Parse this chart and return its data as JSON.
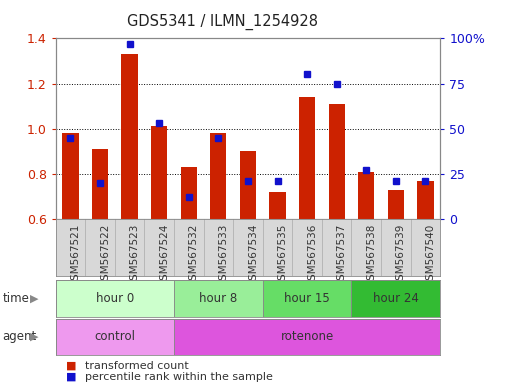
{
  "title": "GDS5341 / ILMN_1254928",
  "samples": [
    "GSM567521",
    "GSM567522",
    "GSM567523",
    "GSM567524",
    "GSM567532",
    "GSM567533",
    "GSM567534",
    "GSM567535",
    "GSM567536",
    "GSM567537",
    "GSM567538",
    "GSM567539",
    "GSM567540"
  ],
  "transformed_count": [
    0.98,
    0.91,
    1.33,
    1.01,
    0.83,
    0.98,
    0.9,
    0.72,
    1.14,
    1.11,
    0.81,
    0.73,
    0.77
  ],
  "percentile_rank_pct": [
    45,
    20,
    97,
    53,
    12,
    45,
    21,
    21,
    80,
    75,
    27,
    21,
    21
  ],
  "ylim_left": [
    0.6,
    1.4
  ],
  "ylim_right": [
    0,
    100
  ],
  "bar_color": "#cc2200",
  "dot_color": "#1111cc",
  "bg_color": "#ffffff",
  "tick_label_color_left": "#cc2200",
  "tick_label_color_right": "#1111cc",
  "yticks_left": [
    0.6,
    0.8,
    1.0,
    1.2,
    1.4
  ],
  "yticks_right": [
    0,
    25,
    50,
    75,
    100
  ],
  "time_groups": [
    {
      "label": "hour 0",
      "start": 0,
      "end": 4
    },
    {
      "label": "hour 8",
      "start": 4,
      "end": 7
    },
    {
      "label": "hour 15",
      "start": 7,
      "end": 10
    },
    {
      "label": "hour 24",
      "start": 10,
      "end": 13
    }
  ],
  "time_group_colors": [
    "#ccffcc",
    "#99ee99",
    "#66dd66",
    "#33bb33"
  ],
  "agent_groups": [
    {
      "label": "control",
      "start": 0,
      "end": 4
    },
    {
      "label": "rotenone",
      "start": 4,
      "end": 13
    }
  ],
  "agent_group_colors": [
    "#ee99ee",
    "#dd55dd"
  ],
  "legend_items": [
    "transformed count",
    "percentile rank within the sample"
  ]
}
